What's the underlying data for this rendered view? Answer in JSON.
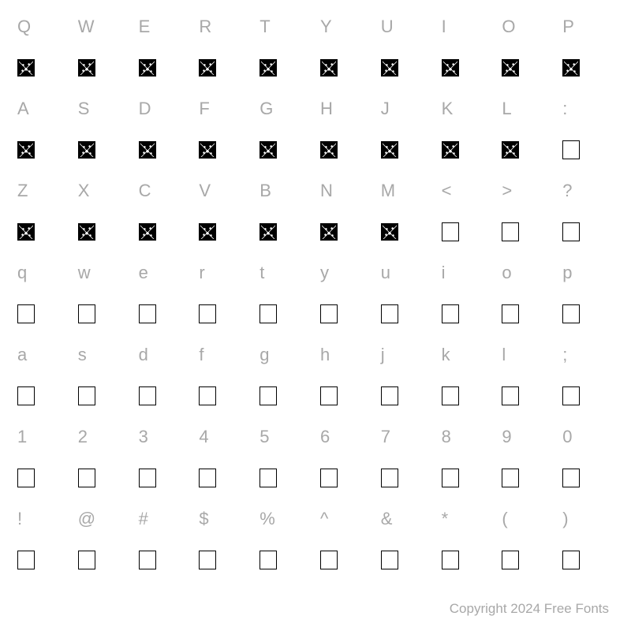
{
  "grid": {
    "label_color": "#a8a8a8",
    "label_fontsize": 22,
    "ornate_size": 22,
    "ornate_bg": "#000000",
    "box_size": 22,
    "box_border": "#000000",
    "background": "#ffffff",
    "columns": 10,
    "rows": [
      {
        "type": "label",
        "values": [
          "Q",
          "W",
          "E",
          "R",
          "T",
          "Y",
          "U",
          "I",
          "O",
          "P"
        ]
      },
      {
        "type": "glyph",
        "values": [
          "ornate",
          "ornate",
          "ornate",
          "ornate",
          "ornate",
          "ornate",
          "ornate",
          "ornate",
          "ornate",
          "ornate"
        ]
      },
      {
        "type": "label",
        "values": [
          "A",
          "S",
          "D",
          "F",
          "G",
          "H",
          "J",
          "K",
          "L",
          ":"
        ]
      },
      {
        "type": "glyph",
        "values": [
          "ornate",
          "ornate",
          "ornate",
          "ornate",
          "ornate",
          "ornate",
          "ornate",
          "ornate",
          "ornate",
          "box"
        ]
      },
      {
        "type": "label",
        "values": [
          "Z",
          "X",
          "C",
          "V",
          "B",
          "N",
          "M",
          "<",
          ">",
          "?"
        ]
      },
      {
        "type": "glyph",
        "values": [
          "ornate",
          "ornate",
          "ornate",
          "ornate",
          "ornate",
          "ornate",
          "ornate",
          "box",
          "box",
          "box"
        ]
      },
      {
        "type": "label",
        "values": [
          "q",
          "w",
          "e",
          "r",
          "t",
          "y",
          "u",
          "i",
          "o",
          "p"
        ]
      },
      {
        "type": "glyph",
        "values": [
          "box",
          "box",
          "box",
          "box",
          "box",
          "box",
          "box",
          "box",
          "box",
          "box"
        ]
      },
      {
        "type": "label",
        "values": [
          "a",
          "s",
          "d",
          "f",
          "g",
          "h",
          "j",
          "k",
          "l",
          ";"
        ]
      },
      {
        "type": "glyph",
        "values": [
          "box",
          "box",
          "box",
          "box",
          "box",
          "box",
          "box",
          "box",
          "box",
          "box"
        ]
      },
      {
        "type": "label",
        "values": [
          "1",
          "2",
          "3",
          "4",
          "5",
          "6",
          "7",
          "8",
          "9",
          "0"
        ]
      },
      {
        "type": "glyph",
        "values": [
          "box",
          "box",
          "box",
          "box",
          "box",
          "box",
          "box",
          "box",
          "box",
          "box"
        ]
      },
      {
        "type": "label",
        "values": [
          "!",
          "@",
          "#",
          "$",
          "%",
          "^",
          "&",
          "*",
          "(",
          ")"
        ]
      },
      {
        "type": "glyph",
        "values": [
          "box",
          "box",
          "box",
          "box",
          "box",
          "box",
          "box",
          "box",
          "box",
          "box"
        ]
      }
    ]
  },
  "copyright": "Copyright 2024 Free Fonts"
}
